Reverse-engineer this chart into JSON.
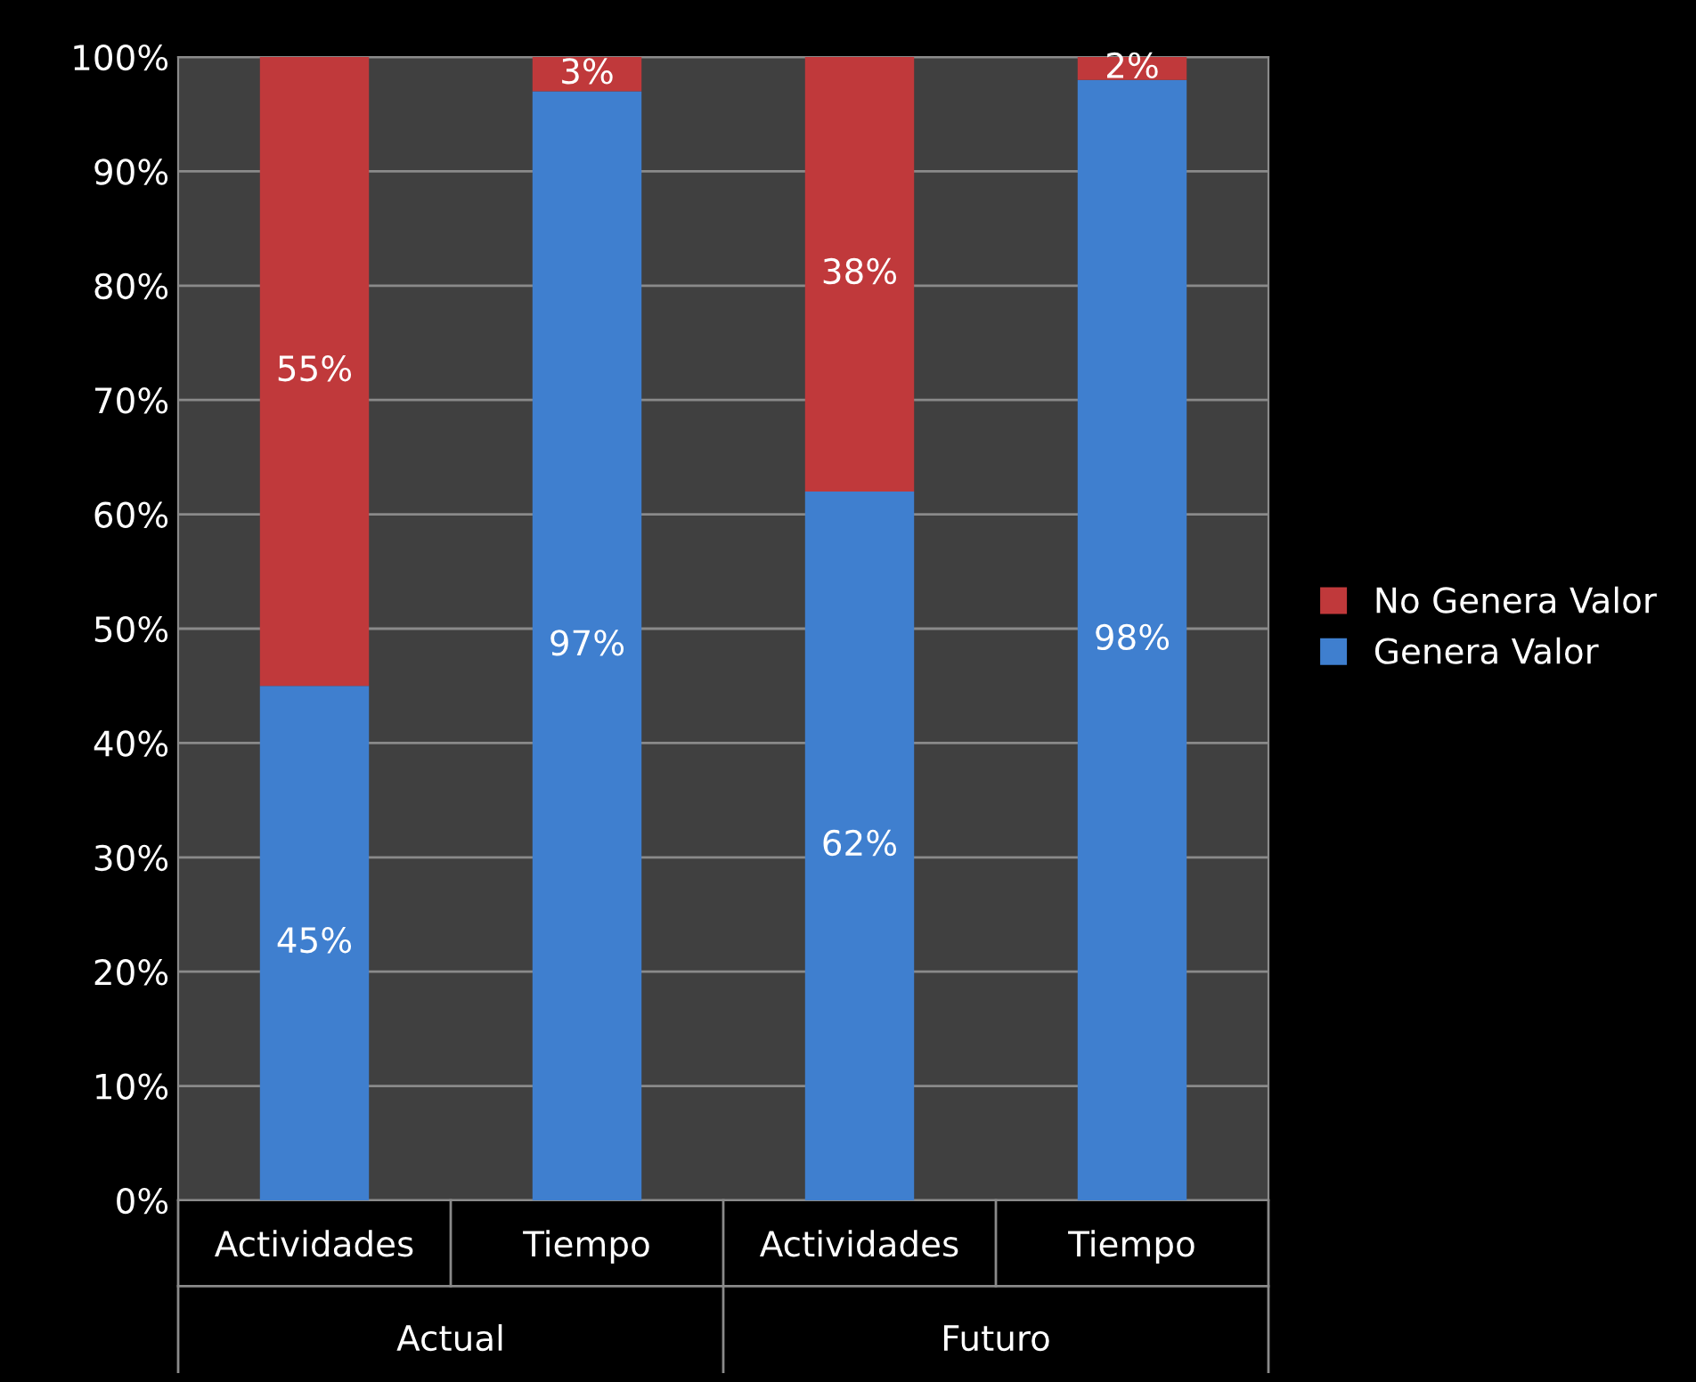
{
  "chart_data": {
    "type": "bar",
    "stacked": true,
    "categories": [
      "Actividades",
      "Tiempo",
      "Actividades",
      "Tiempo"
    ],
    "annotations": [
      "Actual",
      "Futuro"
    ],
    "series": [
      {
        "name": "Genera Valor",
        "color": "#3f7fcf",
        "values": [
          45,
          97,
          62,
          98
        ],
        "value_labels": [
          "45%",
          "97%",
          "62%",
          "98%"
        ]
      },
      {
        "name": "No Genera Valor",
        "color": "#c0393b",
        "values": [
          55,
          3,
          38,
          2
        ],
        "value_labels": [
          "55%",
          "3%",
          "38%",
          "2%"
        ]
      }
    ],
    "ylim": [
      0,
      100
    ],
    "yticks": [
      {
        "value": 0,
        "label": "0%"
      },
      {
        "value": 10,
        "label": "10%"
      },
      {
        "value": 20,
        "label": "20%"
      },
      {
        "value": 30,
        "label": "30%"
      },
      {
        "value": 40,
        "label": "40%"
      },
      {
        "value": 50,
        "label": "50%"
      },
      {
        "value": 60,
        "label": "60%"
      },
      {
        "value": 70,
        "label": "70%"
      },
      {
        "value": 80,
        "label": "80%"
      },
      {
        "value": 90,
        "label": "90%"
      },
      {
        "value": 100,
        "label": "100%"
      }
    ],
    "grid": "y",
    "legend": "right"
  }
}
